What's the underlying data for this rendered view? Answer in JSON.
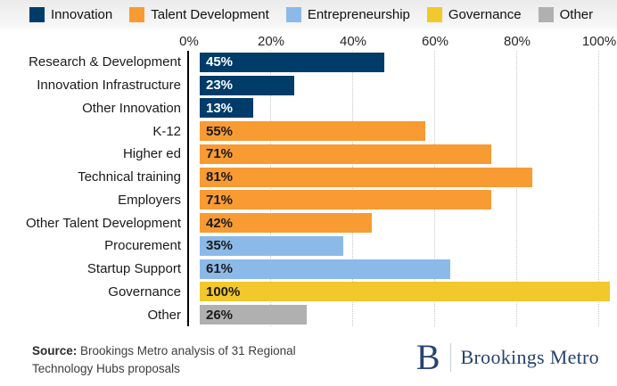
{
  "legend": {
    "items": [
      {
        "label": "Innovation",
        "color": "#003c69",
        "value_text_color": "#ffffff"
      },
      {
        "label": "Talent Development",
        "color": "#f89b33",
        "value_text_color": "#1a1a1a"
      },
      {
        "label": "Entrepreneurship",
        "color": "#8cbae8",
        "value_text_color": "#1a1a1a"
      },
      {
        "label": "Governance",
        "color": "#f2c82d",
        "value_text_color": "#1a1a1a"
      },
      {
        "label": "Other",
        "color": "#b0b0b0",
        "value_text_color": "#1a1a1a"
      }
    ]
  },
  "chart_data": {
    "type": "bar",
    "orientation": "horizontal",
    "xlim": [
      0,
      100
    ],
    "grid": "vertical-dotted",
    "legend_position": "top",
    "ticks": [
      {
        "label": "0%",
        "value": 0
      },
      {
        "label": "20%",
        "value": 20
      },
      {
        "label": "40%",
        "value": 40
      },
      {
        "label": "60%",
        "value": 60
      },
      {
        "label": "80%",
        "value": 80
      },
      {
        "label": "100%",
        "value": 100
      }
    ],
    "bars": [
      {
        "label": "Research & Development",
        "value": 45,
        "display": "45%",
        "category": "Innovation"
      },
      {
        "label": "Innovation Infrastructure",
        "value": 23,
        "display": "23%",
        "category": "Innovation"
      },
      {
        "label": "Other Innovation",
        "value": 13,
        "display": "13%",
        "category": "Innovation"
      },
      {
        "label": "K-12",
        "value": 55,
        "display": "55%",
        "category": "Talent Development"
      },
      {
        "label": "Higher ed",
        "value": 71,
        "display": "71%",
        "category": "Talent Development"
      },
      {
        "label": "Technical training",
        "value": 81,
        "display": "81%",
        "category": "Talent Development"
      },
      {
        "label": "Employers",
        "value": 71,
        "display": "71%",
        "category": "Talent Development"
      },
      {
        "label": "Other Talent Development",
        "value": 42,
        "display": "42%",
        "category": "Talent Development"
      },
      {
        "label": "Procurement",
        "value": 35,
        "display": "35%",
        "category": "Entrepreneurship"
      },
      {
        "label": "Startup Support",
        "value": 61,
        "display": "61%",
        "category": "Entrepreneurship"
      },
      {
        "label": "Governance",
        "value": 100,
        "display": "100%",
        "category": "Governance"
      },
      {
        "label": "Other",
        "value": 26,
        "display": "26%",
        "category": "Other"
      }
    ]
  },
  "footer": {
    "source_label": "Source:",
    "source_text": " Brookings Metro analysis of 31 Regional Technology Hubs proposals"
  },
  "logo": {
    "initial": "B",
    "name": "Brookings Metro",
    "color": "#27436f"
  }
}
